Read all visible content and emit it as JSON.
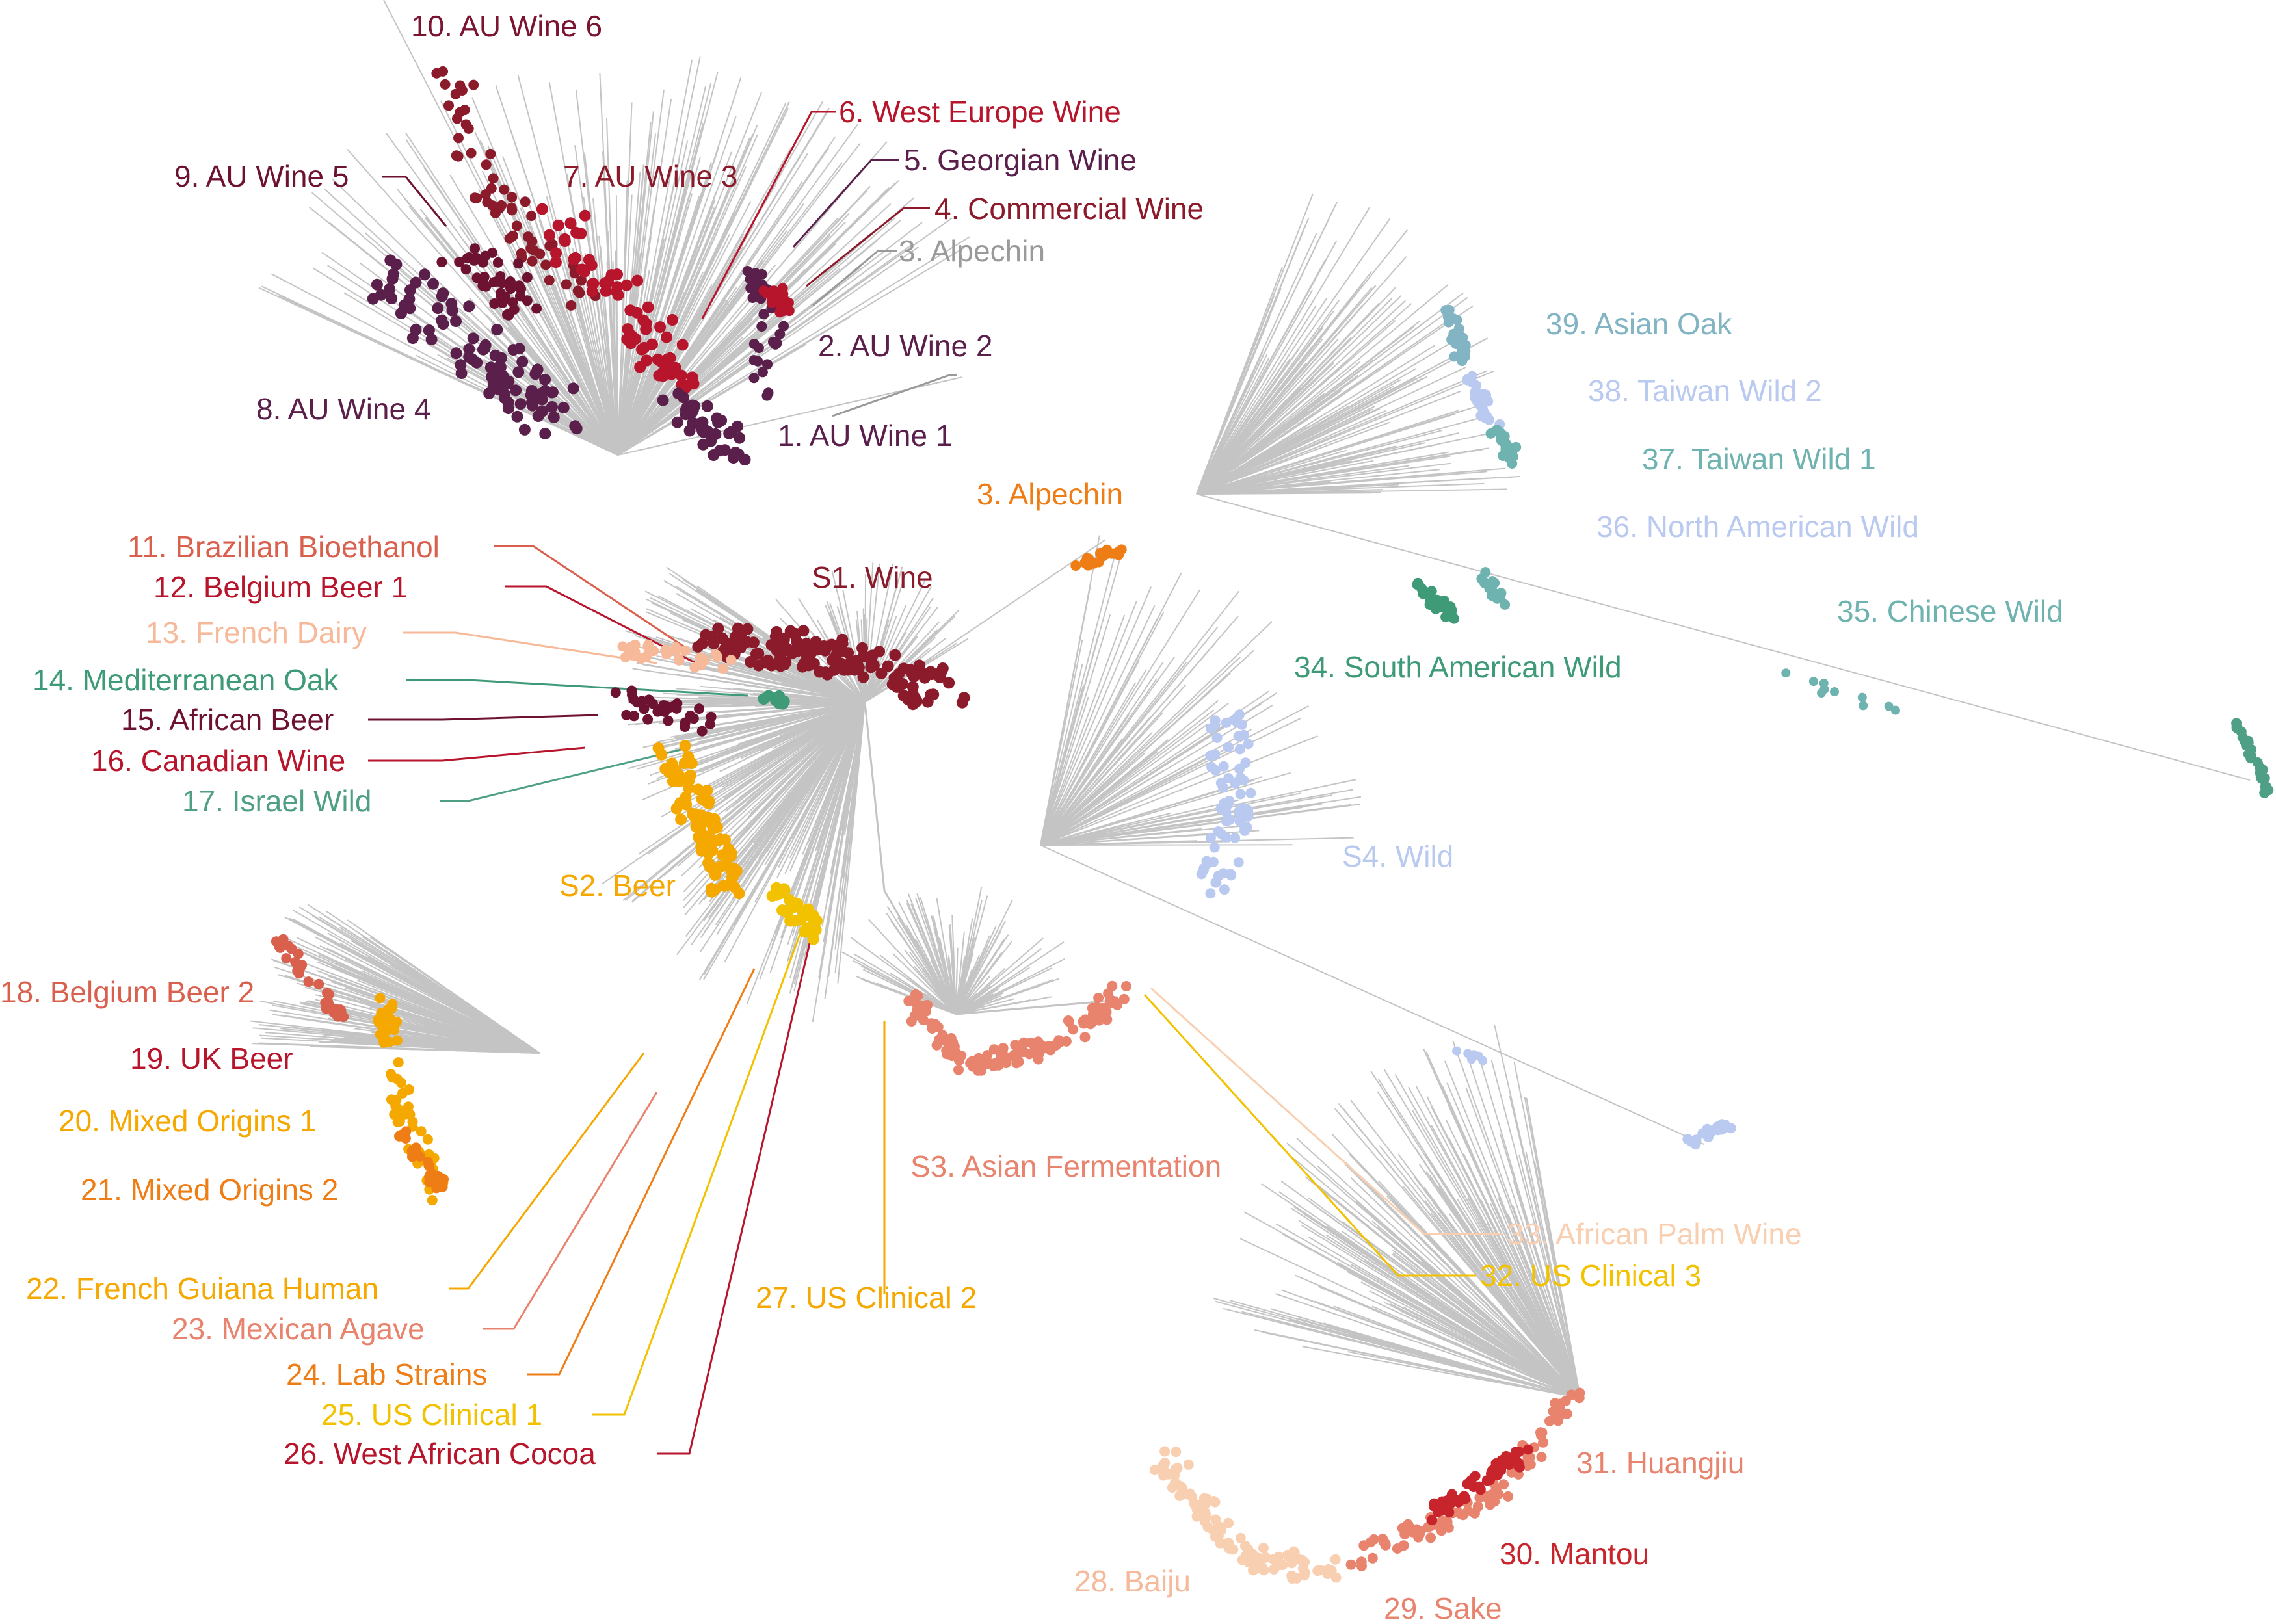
{
  "colors": {
    "branch": "#c4c4c4",
    "wine_dark": "#8b1a2b",
    "wine_red": "#b7152b",
    "red": "#c8242b",
    "purple": "#5a1f4a",
    "maroon": "#6e1232",
    "grey": "#9a9a9a",
    "orange": "#ef7d16",
    "gold": "#f5a800",
    "yellow": "#f2c200",
    "salmon": "#e8836e",
    "coral": "#d9604d",
    "peach": "#f6b99a",
    "light_peach": "#f9cfb2",
    "teal": "#4f9f86",
    "teal_light": "#6fb3b0",
    "steel": "#82b4c4",
    "light_blue": "#b9c9f0",
    "sea_green": "#3f9a78"
  },
  "labels": {
    "au_wine_6": "10. AU Wine 6",
    "west_europe_wine": "6. West Europe Wine",
    "georgian_wine": "5. Georgian Wine",
    "au_wine_5": "9. AU Wine 5",
    "au_wine_3": "7. AU Wine 3",
    "commercial_wine": "4. Commercial Wine",
    "alpechin_top": "3. Alpechin",
    "au_wine_2": "2. AU Wine 2",
    "au_wine_4": "8. AU Wine 4",
    "au_wine_1": "1. AU Wine 1",
    "asian_oak": "39. Asian Oak",
    "taiwan_wild_2": "38. Taiwan Wild 2",
    "taiwan_wild_1": "37. Taiwan Wild 1",
    "north_american_wild": "36. North American Wild",
    "chinese_wild": "35. Chinese Wild",
    "south_american_wild": "34. South American Wild",
    "alpechin_mid": "3. Alpechin",
    "s1_wine": "S1. Wine",
    "brazilian_bioethanol": "11. Brazilian Bioethanol",
    "belgium_beer_1": "12. Belgium Beer 1",
    "french_dairy": "13. French Dairy",
    "mediterranean_oak": "14. Mediterranean Oak",
    "african_beer": "15. African Beer",
    "canadian_wine": "16. Canadian Wine",
    "israel_wild": "17. Israel Wild",
    "s2_beer": "S2. Beer",
    "s4_wild": "S4. Wild",
    "belgium_beer_2": "18. Belgium Beer 2",
    "uk_beer": "19. UK Beer",
    "mixed_origins_1": "20. Mixed Origins 1",
    "mixed_origins_2": "21. Mixed Origins 2",
    "s3_asian_fermentation": "S3. Asian Fermentation",
    "african_palm_wine": "33. African Palm Wine",
    "us_clinical_3": "32. US Clinical 3",
    "french_guiana_human": "22. French Guiana Human",
    "us_clinical_2": "27. US Clinical 2",
    "mexican_agave": "23. Mexican Agave",
    "lab_strains": "24. Lab Strains",
    "us_clinical_1": "25. US Clinical 1",
    "west_african_cocoa": "26. West African Cocoa",
    "huangjiu": "31. Huangjiu",
    "mantou": "30. Mantou",
    "baiju": "28. Baiju",
    "sake": "29. Sake"
  }
}
